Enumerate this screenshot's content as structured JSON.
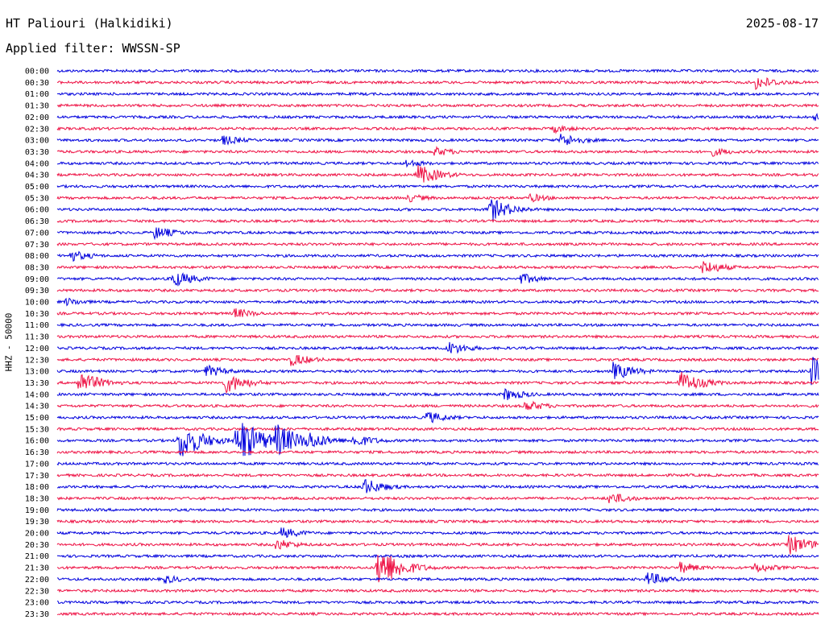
{
  "header": {
    "station": "HT Paliouri (Halkidiki)",
    "date": "2025-08-17",
    "filter": "Applied filter: WWSSN-SP"
  },
  "colors": {
    "even_rows": "#0000dd",
    "odd_rows": "#ee1144",
    "background": "#ffffff"
  },
  "chart_data": {
    "type": "line",
    "ylabel": "HHZ - 50000",
    "row_labels": [
      "00:00",
      "00:30",
      "01:00",
      "01:30",
      "02:00",
      "02:30",
      "03:00",
      "03:30",
      "04:00",
      "04:30",
      "05:00",
      "05:30",
      "06:00",
      "06:30",
      "07:00",
      "07:30",
      "08:00",
      "08:30",
      "09:00",
      "09:30",
      "10:00",
      "10:30",
      "11:00",
      "11:30",
      "12:00",
      "12:30",
      "13:00",
      "13:30",
      "14:00",
      "14:30",
      "15:00",
      "15:30",
      "16:00",
      "16:30",
      "17:00",
      "17:30",
      "18:00",
      "18:30",
      "19:00",
      "19:30",
      "20:00",
      "20:30",
      "21:00",
      "21:30",
      "22:00",
      "22:30",
      "23:00",
      "23:30"
    ],
    "minutes_per_row": 30,
    "events": [
      {
        "row": "00:30",
        "minute": 27.5,
        "amp": 10
      },
      {
        "row": "02:00",
        "minute": 29.8,
        "amp": 6
      },
      {
        "row": "02:30",
        "minute": 19.5,
        "amp": 6
      },
      {
        "row": "03:00",
        "minute": 6.5,
        "amp": 7
      },
      {
        "row": "03:00",
        "minute": 19.8,
        "amp": 10
      },
      {
        "row": "03:30",
        "minute": 14.8,
        "amp": 7
      },
      {
        "row": "03:30",
        "minute": 25.8,
        "amp": 6
      },
      {
        "row": "04:00",
        "minute": 13.7,
        "amp": 6
      },
      {
        "row": "04:30",
        "minute": 14.2,
        "amp": 14
      },
      {
        "row": "05:30",
        "minute": 13.8,
        "amp": 6
      },
      {
        "row": "05:30",
        "minute": 18.6,
        "amp": 6
      },
      {
        "row": "06:00",
        "minute": 17.0,
        "amp": 16
      },
      {
        "row": "07:00",
        "minute": 3.8,
        "amp": 9
      },
      {
        "row": "08:00",
        "minute": 0.5,
        "amp": 8
      },
      {
        "row": "08:30",
        "minute": 25.4,
        "amp": 10
      },
      {
        "row": "09:00",
        "minute": 4.5,
        "amp": 12
      },
      {
        "row": "09:00",
        "minute": 18.2,
        "amp": 8
      },
      {
        "row": "10:00",
        "minute": 0.3,
        "amp": 6
      },
      {
        "row": "10:30",
        "minute": 6.9,
        "amp": 8
      },
      {
        "row": "12:00",
        "minute": 15.3,
        "amp": 10
      },
      {
        "row": "12:30",
        "minute": 9.2,
        "amp": 9
      },
      {
        "row": "13:00",
        "minute": 5.8,
        "amp": 9
      },
      {
        "row": "13:00",
        "minute": 21.9,
        "amp": 12
      },
      {
        "row": "13:00",
        "minute": 29.7,
        "amp": 20
      },
      {
        "row": "13:30",
        "minute": 0.8,
        "amp": 16
      },
      {
        "row": "13:30",
        "minute": 6.6,
        "amp": 14
      },
      {
        "row": "13:30",
        "minute": 24.5,
        "amp": 16
      },
      {
        "row": "14:00",
        "minute": 17.6,
        "amp": 9
      },
      {
        "row": "14:30",
        "minute": 18.4,
        "amp": 8
      },
      {
        "row": "15:00",
        "minute": 14.5,
        "amp": 9
      },
      {
        "row": "16:00",
        "minute": 4.8,
        "amp": 26
      },
      {
        "row": "16:00",
        "minute": 7.2,
        "amp": 30
      },
      {
        "row": "16:00",
        "minute": 8.6,
        "amp": 24
      },
      {
        "row": "16:00",
        "minute": 7.0,
        "amp": 18
      },
      {
        "row": "16:00",
        "minute": 9.8,
        "amp": 14
      },
      {
        "row": "16:00",
        "minute": 11.6,
        "amp": 10
      },
      {
        "row": "18:00",
        "minute": 12.0,
        "amp": 12
      },
      {
        "row": "18:30",
        "minute": 21.7,
        "amp": 9
      },
      {
        "row": "20:00",
        "minute": 8.8,
        "amp": 8
      },
      {
        "row": "20:30",
        "minute": 8.6,
        "amp": 8
      },
      {
        "row": "20:30",
        "minute": 28.8,
        "amp": 14
      },
      {
        "row": "21:30",
        "minute": 12.6,
        "amp": 30
      },
      {
        "row": "21:30",
        "minute": 24.5,
        "amp": 8
      },
      {
        "row": "21:30",
        "minute": 27.4,
        "amp": 8
      },
      {
        "row": "22:00",
        "minute": 23.2,
        "amp": 10
      },
      {
        "row": "22:00",
        "minute": 4.2,
        "amp": 6
      }
    ]
  }
}
